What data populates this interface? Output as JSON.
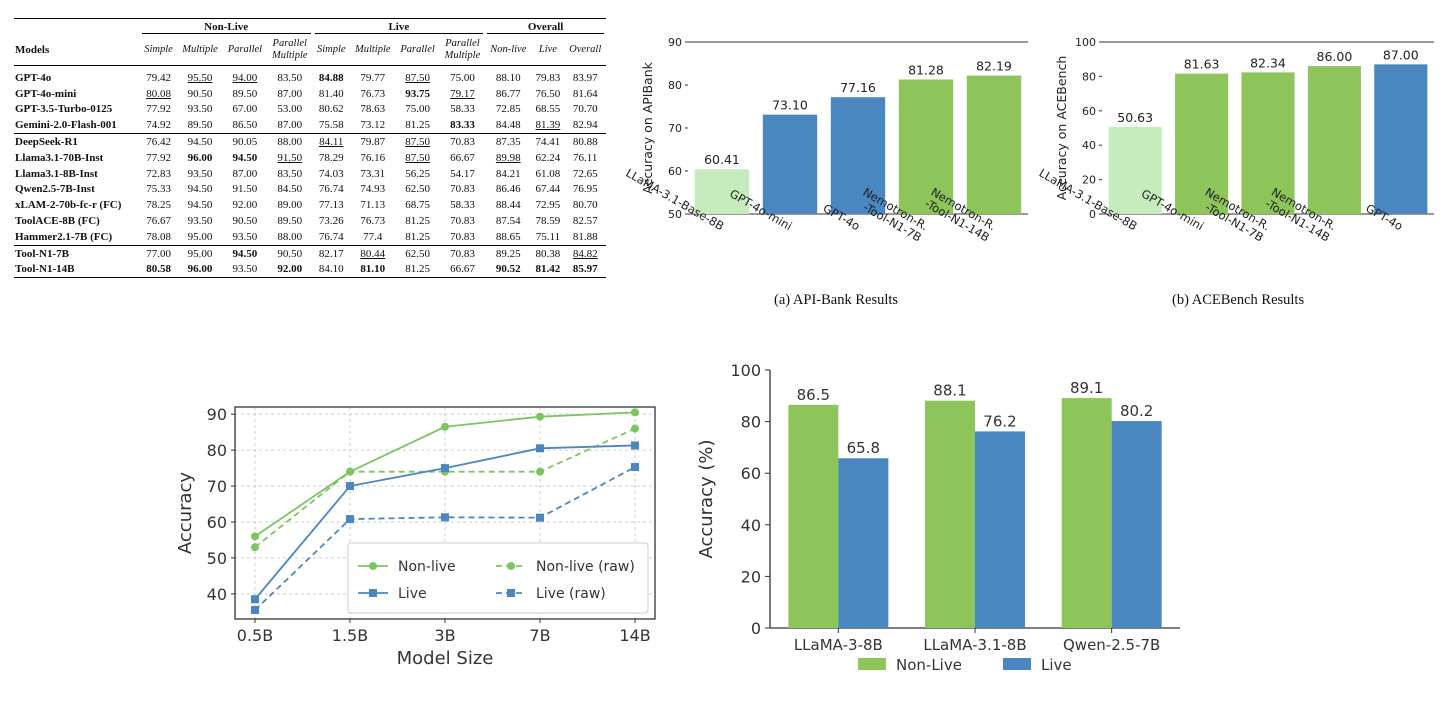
{
  "table": {
    "groups": [
      "Non-Live",
      "Live",
      "Overall"
    ],
    "columns": [
      "Models",
      "Simple",
      "Multiple",
      "Parallel",
      "Parallel Multiple",
      "Simple",
      "Multiple",
      "Parallel",
      "Parallel Multiple",
      "Non-live",
      "Live",
      "Overall"
    ],
    "sections": [
      [
        {
          "model": "GPT-4o",
          "cells": [
            [
              "79.42",
              ""
            ],
            [
              "95.50",
              "u"
            ],
            [
              "94.00",
              "u"
            ],
            [
              "83.50",
              ""
            ],
            [
              "84.88",
              "b"
            ],
            [
              "79.77",
              ""
            ],
            [
              "87.50",
              "u"
            ],
            [
              "75.00",
              ""
            ],
            [
              "88.10",
              ""
            ],
            [
              "79.83",
              ""
            ],
            [
              "83.97",
              ""
            ]
          ]
        },
        {
          "model": "GPT-4o-mini",
          "cells": [
            [
              "80.08",
              "u"
            ],
            [
              "90.50",
              ""
            ],
            [
              "89.50",
              ""
            ],
            [
              "87.00",
              ""
            ],
            [
              "81.40",
              ""
            ],
            [
              "76.73",
              ""
            ],
            [
              "93.75",
              "b"
            ],
            [
              "79.17",
              "u"
            ],
            [
              "86.77",
              ""
            ],
            [
              "76.50",
              ""
            ],
            [
              "81.64",
              ""
            ]
          ]
        },
        {
          "model": "GPT-3.5-Turbo-0125",
          "cells": [
            [
              "77.92",
              ""
            ],
            [
              "93.50",
              ""
            ],
            [
              "67.00",
              ""
            ],
            [
              "53.00",
              ""
            ],
            [
              "80.62",
              ""
            ],
            [
              "78.63",
              ""
            ],
            [
              "75.00",
              ""
            ],
            [
              "58.33",
              ""
            ],
            [
              "72.85",
              ""
            ],
            [
              "68.55",
              ""
            ],
            [
              "70.70",
              ""
            ]
          ]
        },
        {
          "model": "Gemini-2.0-Flash-001",
          "cells": [
            [
              "74.92",
              ""
            ],
            [
              "89.50",
              ""
            ],
            [
              "86.50",
              ""
            ],
            [
              "87.00",
              ""
            ],
            [
              "75.58",
              ""
            ],
            [
              "73.12",
              ""
            ],
            [
              "81.25",
              ""
            ],
            [
              "83.33",
              "b"
            ],
            [
              "84.48",
              ""
            ],
            [
              "81.39",
              "u"
            ],
            [
              "82.94",
              ""
            ]
          ]
        }
      ],
      [
        {
          "model": "DeepSeek-R1",
          "cells": [
            [
              "76.42",
              ""
            ],
            [
              "94.50",
              ""
            ],
            [
              "90.05",
              ""
            ],
            [
              "88.00",
              ""
            ],
            [
              "84.11",
              "u"
            ],
            [
              "79.87",
              ""
            ],
            [
              "87.50",
              "u"
            ],
            [
              "70.83",
              ""
            ],
            [
              "87.35",
              ""
            ],
            [
              "74.41",
              ""
            ],
            [
              "80.88",
              ""
            ]
          ]
        },
        {
          "model": "Llama3.1-70B-Inst",
          "cells": [
            [
              "77.92",
              ""
            ],
            [
              "96.00",
              "b"
            ],
            [
              "94.50",
              "b"
            ],
            [
              "91.50",
              "u"
            ],
            [
              "78.29",
              ""
            ],
            [
              "76.16",
              ""
            ],
            [
              "87.50",
              "u"
            ],
            [
              "66.67",
              ""
            ],
            [
              "89.98",
              "u"
            ],
            [
              "62.24",
              ""
            ],
            [
              "76.11",
              ""
            ]
          ]
        },
        {
          "model": "Llama3.1-8B-Inst",
          "cells": [
            [
              "72.83",
              ""
            ],
            [
              "93.50",
              ""
            ],
            [
              "87.00",
              ""
            ],
            [
              "83.50",
              ""
            ],
            [
              "74.03",
              ""
            ],
            [
              "73.31",
              ""
            ],
            [
              "56.25",
              ""
            ],
            [
              "54.17",
              ""
            ],
            [
              "84.21",
              ""
            ],
            [
              "61.08",
              ""
            ],
            [
              "72.65",
              ""
            ]
          ]
        },
        {
          "model": "Qwen2.5-7B-Inst",
          "cells": [
            [
              "75.33",
              ""
            ],
            [
              "94.50",
              ""
            ],
            [
              "91.50",
              ""
            ],
            [
              "84.50",
              ""
            ],
            [
              "76.74",
              ""
            ],
            [
              "74.93",
              ""
            ],
            [
              "62.50",
              ""
            ],
            [
              "70.83",
              ""
            ],
            [
              "86.46",
              ""
            ],
            [
              "67.44",
              ""
            ],
            [
              "76.95",
              ""
            ]
          ]
        },
        {
          "model": "xLAM-2-70b-fc-r (FC)",
          "cells": [
            [
              "78.25",
              ""
            ],
            [
              "94.50",
              ""
            ],
            [
              "92.00",
              ""
            ],
            [
              "89.00",
              ""
            ],
            [
              "77.13",
              ""
            ],
            [
              "71.13",
              ""
            ],
            [
              "68.75",
              ""
            ],
            [
              "58.33",
              ""
            ],
            [
              "88.44",
              ""
            ],
            [
              "72.95",
              ""
            ],
            [
              "80.70",
              ""
            ]
          ]
        },
        {
          "model": "ToolACE-8B (FC)",
          "cells": [
            [
              "76.67",
              ""
            ],
            [
              "93.50",
              ""
            ],
            [
              "90.50",
              ""
            ],
            [
              "89.50",
              ""
            ],
            [
              "73.26",
              ""
            ],
            [
              "76.73",
              ""
            ],
            [
              "81.25",
              ""
            ],
            [
              "70.83",
              ""
            ],
            [
              "87.54",
              ""
            ],
            [
              "78.59",
              ""
            ],
            [
              "82.57",
              ""
            ]
          ]
        },
        {
          "model": "Hammer2.1-7B (FC)",
          "cells": [
            [
              "78.08",
              ""
            ],
            [
              "95.00",
              ""
            ],
            [
              "93.50",
              ""
            ],
            [
              "88.00",
              ""
            ],
            [
              "76.74",
              ""
            ],
            [
              "77.4",
              ""
            ],
            [
              "81.25",
              ""
            ],
            [
              "70.83",
              ""
            ],
            [
              "88.65",
              ""
            ],
            [
              "75.11",
              ""
            ],
            [
              "81.88",
              ""
            ]
          ]
        }
      ],
      [
        {
          "model": "Tool-N1-7B",
          "cells": [
            [
              "77.00",
              ""
            ],
            [
              "95.00",
              ""
            ],
            [
              "94.50",
              "b"
            ],
            [
              "90.50",
              ""
            ],
            [
              "82.17",
              ""
            ],
            [
              "80.44",
              "u"
            ],
            [
              "62.50",
              ""
            ],
            [
              "70.83",
              ""
            ],
            [
              "89.25",
              ""
            ],
            [
              "80.38",
              ""
            ],
            [
              "84.82",
              "u"
            ]
          ]
        },
        {
          "model": "Tool-N1-14B",
          "cells": [
            [
              "80.58",
              "b"
            ],
            [
              "96.00",
              "b"
            ],
            [
              "93.50",
              ""
            ],
            [
              "92.00",
              "b"
            ],
            [
              "84.10",
              ""
            ],
            [
              "81.10",
              "b"
            ],
            [
              "81.25",
              ""
            ],
            [
              "66.67",
              ""
            ],
            [
              "90.52",
              "b"
            ],
            [
              "81.42",
              "b"
            ],
            [
              "85.97",
              "b"
            ]
          ]
        }
      ]
    ]
  },
  "chart_data": [
    {
      "type": "bar",
      "id": "apibank",
      "caption": "(a) API-Bank Results",
      "ylabel": "Accuracy on APIBank",
      "ylim": [
        50,
        90
      ],
      "yticks": [
        50,
        60,
        70,
        80,
        90
      ],
      "categories": [
        "LLaMA-3.1-Base-8B",
        "GPT-4o-mini",
        "GPT-4o",
        "Nemotron-R.\n-Tool-N1-7B",
        "Nemotron-R.\n-Tool-N1-14B"
      ],
      "values": [
        60.41,
        73.1,
        77.16,
        81.28,
        82.19
      ],
      "value_labels": [
        "60.41",
        "73.10",
        "77.16",
        "81.28",
        "82.19"
      ],
      "colors": [
        "#c6ebbd",
        "#4a87c0",
        "#4a87c0",
        "#8ec55b",
        "#8ec55b"
      ]
    },
    {
      "type": "bar",
      "id": "acebench",
      "caption": "(b) ACEBench Results",
      "ylabel": "Accuracy on ACEBench",
      "ylim": [
        0,
        100
      ],
      "yticks": [
        0,
        20,
        40,
        60,
        80,
        100
      ],
      "categories": [
        "LLaMA-3.1-Base-8B",
        "GPT-4o-mini",
        "Nemotron-R.\n-Tool-N1-7B",
        "Nemotron-R.\n-Tool-N1-14B",
        "GPT-4o"
      ],
      "values": [
        50.63,
        81.63,
        82.34,
        86.0,
        87.0
      ],
      "value_labels": [
        "50.63",
        "81.63",
        "82.34",
        "86.00",
        "87.00"
      ],
      "colors": [
        "#c6ebbd",
        "#8ec55b",
        "#8ec55b",
        "#8ec55b",
        "#4a87c0"
      ]
    },
    {
      "type": "line",
      "id": "scaling",
      "xlabel": "Model Size",
      "ylabel": "Accuracy",
      "categories": [
        "0.5B",
        "1.5B",
        "3B",
        "7B",
        "14B"
      ],
      "ylim": [
        33,
        92
      ],
      "yticks": [
        40,
        50,
        60,
        70,
        80,
        90
      ],
      "grid": true,
      "legend": "bottom-right",
      "series": [
        {
          "name": "Non-live",
          "values": [
            56.0,
            74.0,
            86.5,
            89.3,
            90.5
          ],
          "color": "#7dc560",
          "dash": false,
          "marker": "circle"
        },
        {
          "name": "Non-live (raw)",
          "values": [
            53.0,
            74.0,
            74.0,
            74.0,
            86.0
          ],
          "color": "#7dc560",
          "dash": true,
          "marker": "circle"
        },
        {
          "name": "Live",
          "values": [
            38.5,
            70.0,
            75.0,
            80.5,
            81.3
          ],
          "color": "#4a87c0",
          "dash": false,
          "marker": "square"
        },
        {
          "name": "Live (raw)",
          "values": [
            35.5,
            60.8,
            61.3,
            61.2,
            75.3
          ],
          "color": "#4a87c0",
          "dash": true,
          "marker": "square"
        }
      ]
    },
    {
      "type": "bar",
      "id": "grouped",
      "ylabel": "Accuracy (%)",
      "ylim": [
        0,
        100
      ],
      "yticks": [
        0,
        20,
        40,
        60,
        80,
        100
      ],
      "categories": [
        "LLaMA-3-8B",
        "LLaMA-3.1-8B",
        "Qwen-2.5-7B"
      ],
      "legend": "bottom",
      "series": [
        {
          "name": "Non-Live",
          "values": [
            86.5,
            88.1,
            89.1
          ],
          "color": "#8ec55b"
        },
        {
          "name": "Live",
          "values": [
            65.8,
            76.2,
            80.2
          ],
          "color": "#4a87c0"
        }
      ]
    }
  ]
}
